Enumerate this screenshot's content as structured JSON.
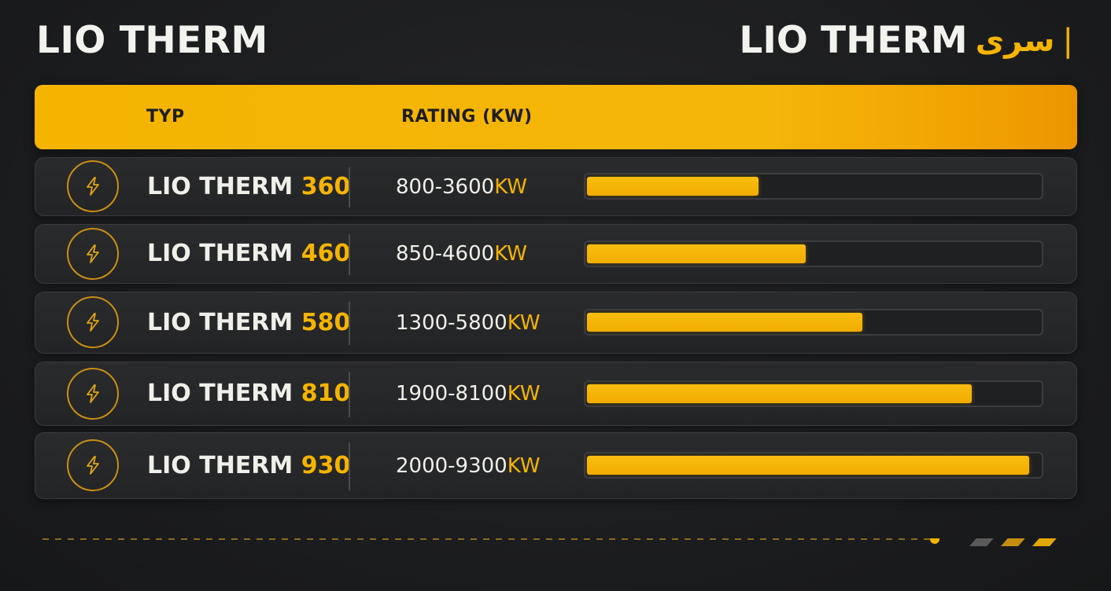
{
  "header": {
    "title_left": "LIO THERM",
    "title_right_brand": "LIO THERM",
    "title_right_accent": "سری",
    "title_right_mark": "|"
  },
  "table": {
    "col_type": "TYP",
    "col_rating": "RATING (KW)"
  },
  "colors": {
    "accent": "#f5b400",
    "background": "#1c1d1f",
    "row": "#262729"
  },
  "icon": "lightning-bolt-icon",
  "chart_data": {
    "type": "bar",
    "orientation": "horizontal",
    "xlim": [
      0,
      9600
    ],
    "rows": [
      {
        "model_prefix": "LIO THERM",
        "model_number": "360",
        "rating_range": "800-3600",
        "unit": "KW",
        "value": 3600
      },
      {
        "model_prefix": "LIO THERM",
        "model_number": "460",
        "rating_range": "850-4600",
        "unit": "KW",
        "value": 4600
      },
      {
        "model_prefix": "LIO THERM",
        "model_number": "580",
        "rating_range": "1300-5800",
        "unit": "KW",
        "value": 5800
      },
      {
        "model_prefix": "LIO THERM",
        "model_number": "810",
        "rating_range": "1900-8100",
        "unit": "KW",
        "value": 8100
      },
      {
        "model_prefix": "LIO THERM",
        "model_number": "930",
        "rating_range": "2000-9300",
        "unit": "KW",
        "value": 9300
      }
    ]
  }
}
